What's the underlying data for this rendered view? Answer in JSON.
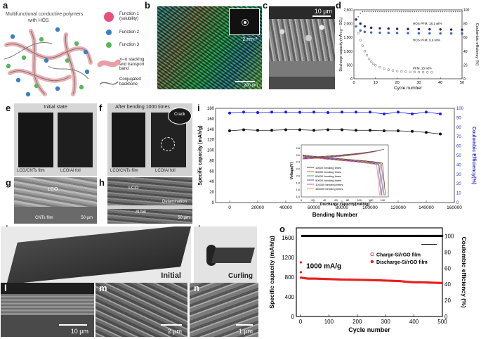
{
  "labels": {
    "a": "a",
    "b": "b",
    "c": "c",
    "d": "d",
    "e": "e",
    "f": "f",
    "g": "g",
    "h": "h",
    "i": "i",
    "j": "j",
    "k": "k",
    "l": "l",
    "m": "m",
    "n": "n",
    "o": "o"
  },
  "panel_a": {
    "title_line1": "Multifunctional conductive polymers",
    "title_line2": "with HOS",
    "legend": [
      {
        "text": "Function 1",
        "sub": "(solubility)",
        "color": "#e7507f"
      },
      {
        "text": "Function 2",
        "sub": "",
        "color": "#3b7fc8"
      },
      {
        "text": "Function 3",
        "sub": "",
        "color": "#55b85a"
      },
      {
        "text": "π–π stacking",
        "sub": "and transport band",
        "color": "#e8a0a5"
      },
      {
        "text": "Conjugated",
        "sub": "backbone",
        "color": "#666666"
      }
    ]
  },
  "panel_b": {
    "scale_main": "200 nm",
    "scale_inset": "2 nm⁻¹"
  },
  "panel_c": {
    "scale": "10 µm"
  },
  "panel_d": {
    "chart_data": {
      "type": "scatter",
      "xlabel": "Cycle number",
      "ylabel_left": "Discharge capacity (mAh g⁻¹ SiOₓ)",
      "ylabel_right": "Coulombic efficiency (%)",
      "xlim": [
        0,
        50
      ],
      "ylim_left": [
        0,
        2500
      ],
      "ylim_right": [
        0,
        100
      ],
      "xticks": [
        0,
        10,
        20,
        30,
        40,
        50
      ],
      "yticks_left": [
        "0",
        "500",
        "1,000",
        "1,500",
        "2,000",
        "2,500"
      ],
      "yticks_right": [
        0,
        20,
        40,
        60,
        80,
        100
      ],
      "series": [
        {
          "name": "HOS PFM, 18.1 wt%",
          "color": "#1b2a7a",
          "x": [
            1,
            3,
            5,
            8,
            12,
            16,
            20,
            25,
            30,
            35,
            40,
            45,
            50
          ],
          "y": [
            2150,
            2000,
            1900,
            1850,
            1830,
            1820,
            1810,
            1805,
            1800,
            1795,
            1790,
            1785,
            1780
          ]
        },
        {
          "name": "HOS PFM, 9.6 wt%",
          "color": "#3b63b8",
          "x": [
            1,
            3,
            5,
            8,
            12,
            16,
            20,
            25,
            30,
            35,
            40,
            45,
            50
          ],
          "y": [
            1900,
            1750,
            1700,
            1680,
            1670,
            1665,
            1660,
            1655,
            1650,
            1648,
            1645,
            1642,
            1640
          ]
        },
        {
          "name": "PFM, 15 wt%",
          "color": "#8a8a8a",
          "x": [
            1,
            2,
            3,
            4,
            5,
            6,
            7,
            8,
            9,
            10,
            12,
            14,
            16,
            18,
            20,
            22,
            24,
            26,
            28,
            30,
            32,
            34,
            36
          ],
          "y": [
            1900,
            1650,
            1400,
            1200,
            1000,
            850,
            720,
            620,
            550,
            490,
            420,
            370,
            330,
            300,
            280,
            265,
            255,
            248,
            243,
            240,
            238,
            236,
            235
          ]
        }
      ],
      "annotations": [
        "HOS PFM, 18.1 wt%",
        "HOS PFM, 9.6 wt%",
        "PFM, 15 wt%"
      ]
    }
  },
  "panel_e": {
    "title": "Initial state",
    "label_left": "LCO/CNTs film",
    "label_right": "LCO/Al foil"
  },
  "panel_f": {
    "title": "After bending 1000 times",
    "label_left": "LCO/CNTs film",
    "label_right": "LCO/Al foil",
    "crack": "Crack"
  },
  "panel_g": {
    "lco": "LCO",
    "cnt": "CNTs film",
    "scale": "50 µm"
  },
  "panel_h": {
    "lco": "LCO",
    "al": "Al foil",
    "delam": "Delamination",
    "scale": "50 µm"
  },
  "panel_i": {
    "chart_data": {
      "type": "scatter",
      "xlabel": "Bending Number",
      "ylabel_left": "Specific capacity (mAh/g)",
      "ylabel_right": "Coulombic Efficiency(%)",
      "xlim": [
        -10000,
        160000
      ],
      "ylim_left": [
        0,
        180
      ],
      "ylim_right": [
        0,
        100
      ],
      "xticks": [
        0,
        20000,
        40000,
        60000,
        80000,
        100000,
        120000,
        140000,
        160000
      ],
      "yticks_left": [
        0,
        20,
        40,
        60,
        80,
        100,
        120,
        140,
        160,
        180
      ],
      "yticks_right": [
        0,
        10,
        20,
        30,
        40,
        50,
        60,
        70,
        80,
        90,
        100
      ],
      "series": [
        {
          "name": "Specific capacity",
          "color": "#111111",
          "x": [
            0,
            10000,
            20000,
            30000,
            40000,
            50000,
            60000,
            70000,
            80000,
            90000,
            100000,
            110000,
            120000,
            130000,
            140000,
            150000
          ],
          "y": [
            137,
            139,
            138,
            138,
            139,
            139,
            138,
            139,
            139,
            138,
            138,
            137,
            137,
            136,
            134,
            131
          ]
        },
        {
          "name": "Coulombic efficiency",
          "color": "#1a1aff",
          "x": [
            0,
            10000,
            20000,
            30000,
            40000,
            50000,
            60000,
            70000,
            80000,
            90000,
            100000,
            110000,
            120000,
            130000,
            140000,
            150000
          ],
          "y": [
            95,
            96,
            95.5,
            96,
            96,
            95.8,
            96,
            95.5,
            96,
            96,
            96,
            94,
            96,
            94,
            96,
            94
          ]
        }
      ],
      "inset": {
        "xlabel": "Discharge capacity(mAh/g)",
        "ylabel": "Voltage(V)",
        "xticks": [
          0,
          20,
          40,
          60,
          80,
          100,
          120,
          140
        ],
        "yticks": [
          "1.4",
          "1.6",
          "1.8",
          "2.0",
          "2.2",
          "2.4",
          "2.6",
          "2.8"
        ],
        "legend": [
          {
            "name": "10000 bending times",
            "color": "#222222"
          },
          {
            "name": "30000 bending times",
            "color": "#e0302a"
          },
          {
            "name": "60000 bending times",
            "color": "#2a8a2a"
          },
          {
            "name": "90000 bending times",
            "color": "#2a2ae0"
          },
          {
            "name": "120000 bending times",
            "color": "#c020c0"
          },
          {
            "name": "150000 bending times",
            "color": "#e08a20"
          }
        ]
      }
    }
  },
  "panel_j": {
    "caption": "Initial"
  },
  "panel_k": {
    "caption": "Curling"
  },
  "panel_l": {
    "scale": "10 µm"
  },
  "panel_m": {
    "scale": "2 µm"
  },
  "panel_n": {
    "scale": "1 µm"
  },
  "panel_o": {
    "chart_data": {
      "type": "scatter",
      "xlabel": "Cycle number",
      "ylabel_left": "Specific capacity (mAh/g)",
      "ylabel_right": "Coulombic efficiency (%)",
      "xlim": [
        0,
        500
      ],
      "ylim_left": [
        0,
        1800
      ],
      "ylim_right": [
        0,
        110
      ],
      "xticks": [
        0,
        100,
        200,
        300,
        400,
        500
      ],
      "yticks_left": [
        0,
        400,
        800,
        1200,
        1600
      ],
      "yticks_right": [
        0,
        20,
        40,
        60,
        80,
        100
      ],
      "annotation": "1000 mA/g",
      "series": [
        {
          "name": "Charge-Si/rGO film",
          "color": "#d22222",
          "marker": "open-circle",
          "x": [
            1,
            25,
            50,
            75,
            100,
            125,
            150,
            175,
            200,
            225,
            250,
            275,
            300,
            325,
            350,
            375,
            400,
            425,
            450,
            475,
            500
          ],
          "y": [
            780,
            760,
            760,
            755,
            750,
            745,
            742,
            740,
            738,
            735,
            730,
            728,
            725,
            720,
            715,
            700,
            690,
            690,
            685,
            680,
            675
          ]
        },
        {
          "name": "Discharge-Si/rGO film",
          "color": "#e82020",
          "marker": "filled-circle",
          "x": [
            1,
            25,
            50,
            75,
            100,
            125,
            150,
            175,
            200,
            225,
            250,
            275,
            300,
            325,
            350,
            375,
            400,
            425,
            450,
            475,
            500
          ],
          "y": [
            790,
            770,
            770,
            765,
            760,
            755,
            750,
            748,
            745,
            742,
            738,
            735,
            730,
            725,
            720,
            705,
            695,
            695,
            690,
            685,
            680
          ]
        },
        {
          "name": "Coulombic efficiency",
          "color": "#111111",
          "marker": "filled-square",
          "x": [
            5,
            25,
            50,
            75,
            100,
            125,
            150,
            175,
            200,
            225,
            250,
            275,
            300,
            325,
            350,
            375,
            400,
            425,
            450,
            475,
            500
          ],
          "y": [
            99,
            100,
            100,
            100,
            100,
            100,
            100,
            100,
            100,
            100,
            100,
            100,
            100,
            100,
            100,
            100,
            100,
            100,
            100,
            100,
            100
          ]
        }
      ],
      "initial_points": [
        {
          "x": 1,
          "y": 1100
        },
        {
          "x": 1,
          "y": 900
        }
      ]
    }
  }
}
